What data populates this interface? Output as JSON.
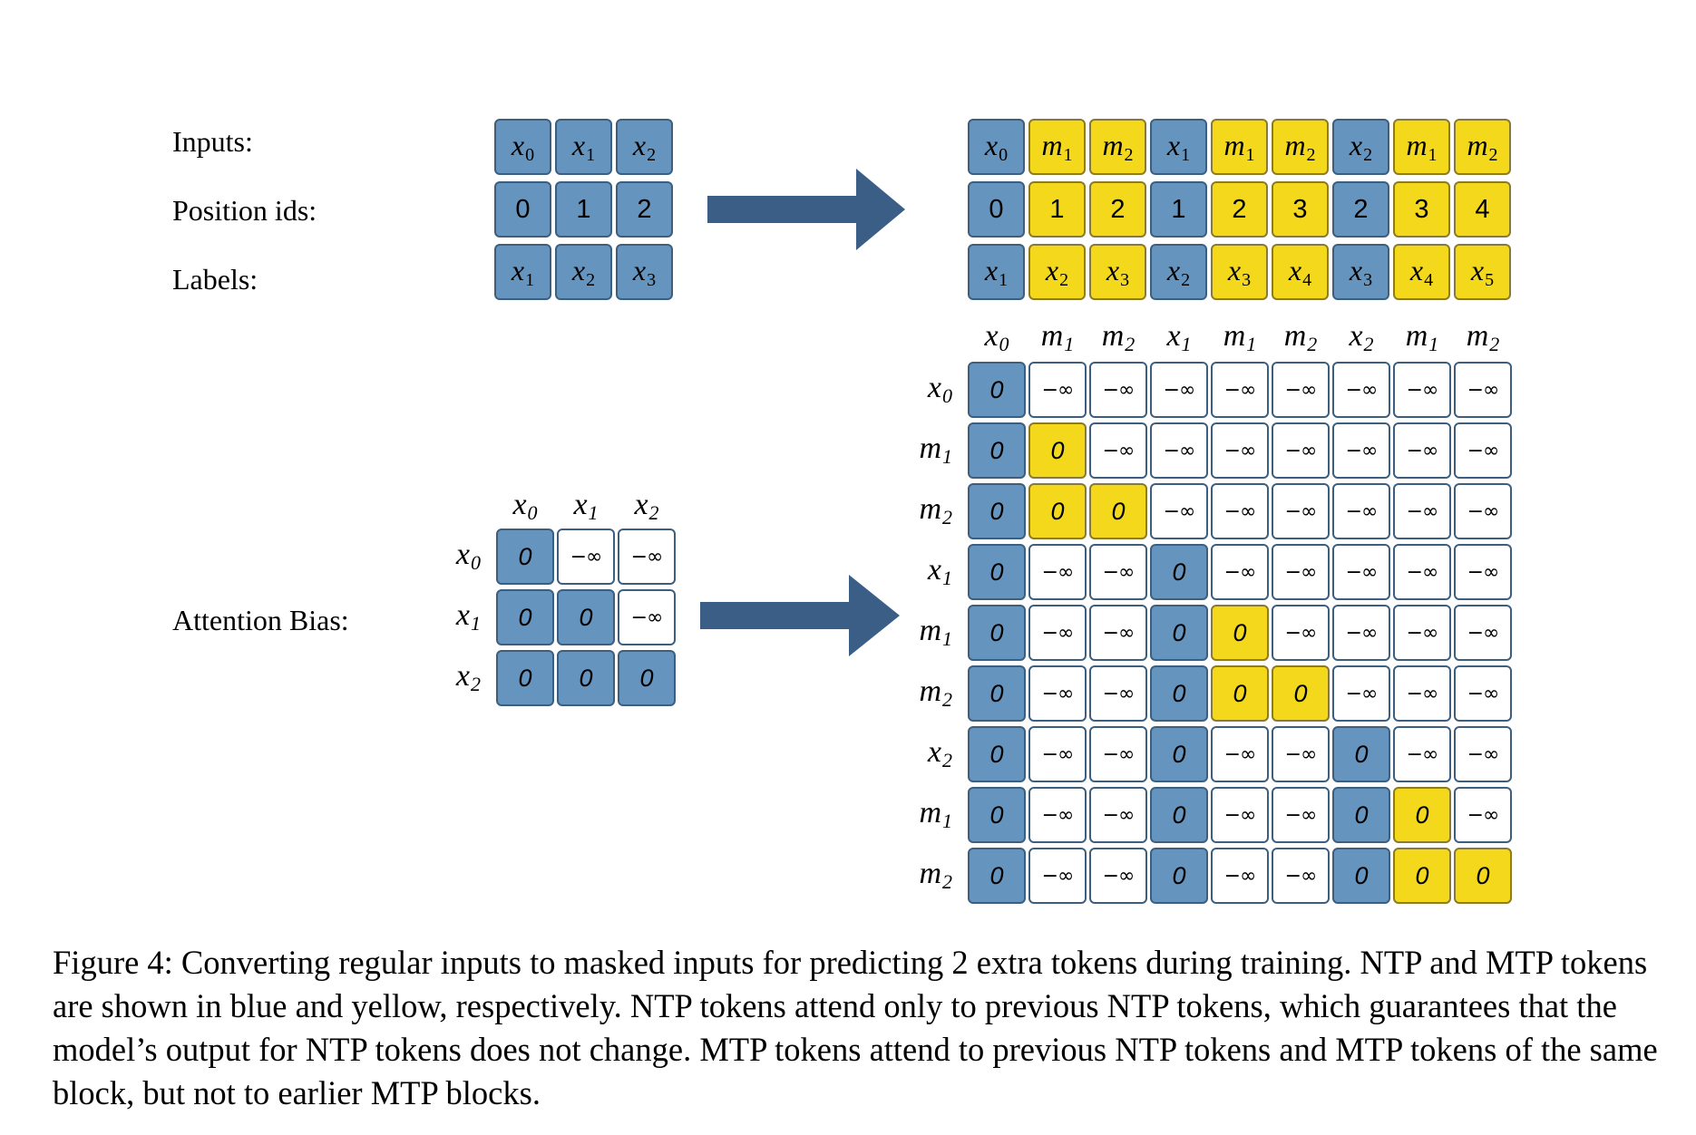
{
  "labels": {
    "inputs": "Inputs:",
    "position_ids": "Position ids:",
    "labels": "Labels:",
    "attention_bias": "Attention Bias:"
  },
  "colors": {
    "ntp_blue": "#6594bf",
    "mtp_yellow": "#f3d81c",
    "arrow": "#3a5e86"
  },
  "small_grid": {
    "inputs": [
      [
        "x",
        "0",
        "ntp"
      ],
      [
        "x",
        "1",
        "ntp"
      ],
      [
        "x",
        "2",
        "ntp"
      ]
    ],
    "position_ids": [
      [
        "0",
        "ntp"
      ],
      [
        "1",
        "ntp"
      ],
      [
        "2",
        "ntp"
      ]
    ],
    "labels": [
      [
        "x",
        "1",
        "ntp"
      ],
      [
        "x",
        "2",
        "ntp"
      ],
      [
        "x",
        "3",
        "ntp"
      ]
    ]
  },
  "large_grid": {
    "inputs": [
      [
        "x",
        "0",
        "ntp"
      ],
      [
        "m",
        "1",
        "mtp"
      ],
      [
        "m",
        "2",
        "mtp"
      ],
      [
        "x",
        "1",
        "ntp"
      ],
      [
        "m",
        "1",
        "mtp"
      ],
      [
        "m",
        "2",
        "mtp"
      ],
      [
        "x",
        "2",
        "ntp"
      ],
      [
        "m",
        "1",
        "mtp"
      ],
      [
        "m",
        "2",
        "mtp"
      ]
    ],
    "position_ids": [
      [
        "0",
        "ntp"
      ],
      [
        "1",
        "mtp"
      ],
      [
        "2",
        "mtp"
      ],
      [
        "1",
        "ntp"
      ],
      [
        "2",
        "mtp"
      ],
      [
        "3",
        "mtp"
      ],
      [
        "2",
        "ntp"
      ],
      [
        "3",
        "mtp"
      ],
      [
        "4",
        "mtp"
      ]
    ],
    "labels": [
      [
        "x",
        "1",
        "ntp"
      ],
      [
        "x",
        "2",
        "mtp"
      ],
      [
        "x",
        "3",
        "mtp"
      ],
      [
        "x",
        "2",
        "ntp"
      ],
      [
        "x",
        "3",
        "mtp"
      ],
      [
        "x",
        "4",
        "mtp"
      ],
      [
        "x",
        "3",
        "ntp"
      ],
      [
        "x",
        "4",
        "mtp"
      ],
      [
        "x",
        "5",
        "mtp"
      ]
    ]
  },
  "small_attention": {
    "headers": [
      [
        "x",
        "0"
      ],
      [
        "x",
        "1"
      ],
      [
        "x",
        "2"
      ]
    ],
    "zero": "0",
    "neg_inf": "−∞",
    "matrix": [
      [
        "b",
        "w",
        "w"
      ],
      [
        "b",
        "b",
        "w"
      ],
      [
        "b",
        "b",
        "b"
      ]
    ]
  },
  "large_attention": {
    "headers": [
      [
        "x",
        "0"
      ],
      [
        "m",
        "1"
      ],
      [
        "m",
        "2"
      ],
      [
        "x",
        "1"
      ],
      [
        "m",
        "1"
      ],
      [
        "m",
        "2"
      ],
      [
        "x",
        "2"
      ],
      [
        "m",
        "1"
      ],
      [
        "m",
        "2"
      ]
    ],
    "zero": "0",
    "neg_inf": "−∞",
    "matrix": [
      [
        "b",
        "w",
        "w",
        "w",
        "w",
        "w",
        "w",
        "w",
        "w"
      ],
      [
        "b",
        "y",
        "w",
        "w",
        "w",
        "w",
        "w",
        "w",
        "w"
      ],
      [
        "b",
        "y",
        "y",
        "w",
        "w",
        "w",
        "w",
        "w",
        "w"
      ],
      [
        "b",
        "w",
        "w",
        "b",
        "w",
        "w",
        "w",
        "w",
        "w"
      ],
      [
        "b",
        "w",
        "w",
        "b",
        "y",
        "w",
        "w",
        "w",
        "w"
      ],
      [
        "b",
        "w",
        "w",
        "b",
        "y",
        "y",
        "w",
        "w",
        "w"
      ],
      [
        "b",
        "w",
        "w",
        "b",
        "w",
        "w",
        "b",
        "w",
        "w"
      ],
      [
        "b",
        "w",
        "w",
        "b",
        "w",
        "w",
        "b",
        "y",
        "w"
      ],
      [
        "b",
        "w",
        "w",
        "b",
        "w",
        "w",
        "b",
        "y",
        "y"
      ]
    ]
  },
  "caption": "Figure 4: Converting regular inputs to masked inputs for predicting 2 extra tokens during training. NTP and MTP tokens are shown in blue and yellow, respectively. NTP tokens attend only to previous NTP tokens, which guarantees that the model’s output for NTP tokens does not change. MTP tokens attend to previous NTP tokens and MTP tokens of the same block, but not to earlier MTP blocks."
}
